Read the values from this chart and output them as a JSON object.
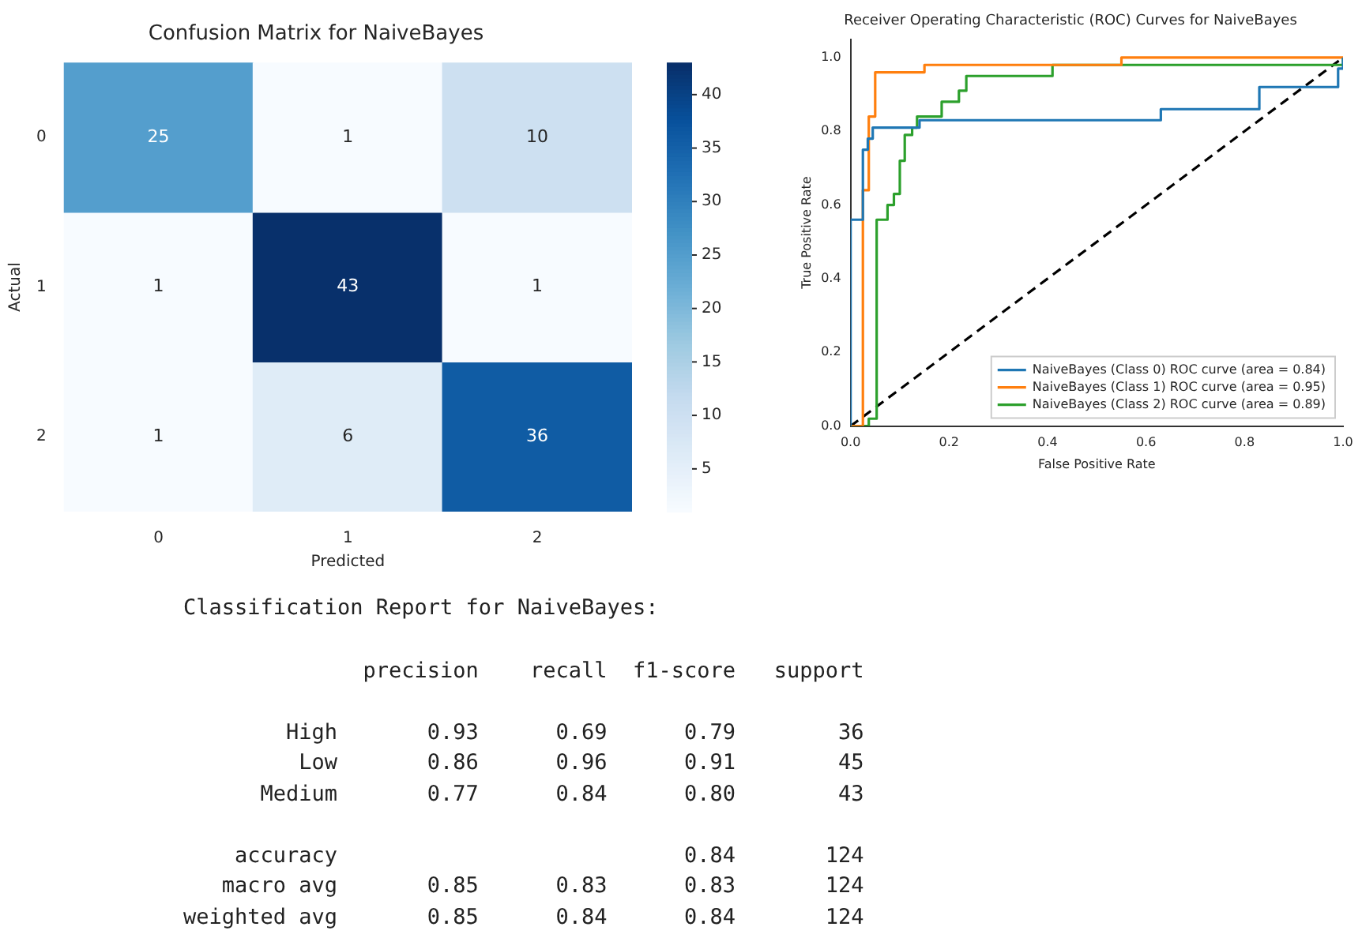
{
  "chart_data": [
    {
      "type": "heatmap",
      "title": "Confusion Matrix for NaiveBayes",
      "xlabel": "Predicted",
      "ylabel": "Actual",
      "categories": [
        "0",
        "1",
        "2"
      ],
      "y_categories": [
        "0",
        "1",
        "2"
      ],
      "cells": [
        [
          25,
          1,
          10
        ],
        [
          1,
          43,
          1
        ],
        [
          1,
          6,
          36
        ]
      ],
      "clim": [
        1,
        43
      ],
      "cticks": [
        5,
        10,
        15,
        20,
        25,
        30,
        35,
        40
      ],
      "data_labels": true
    },
    {
      "type": "line",
      "title": "Receiver Operating Characteristic (ROC) Curves for NaiveBayes",
      "xlabel": "False Positive Rate",
      "ylabel": "True Positive Rate",
      "xlim": [
        0,
        1
      ],
      "ylim": [
        0,
        1.05
      ],
      "xticks": [
        {
          "value": 0,
          "label": "0.0"
        },
        {
          "value": 0.2,
          "label": "0.2"
        },
        {
          "value": 0.4,
          "label": "0.4"
        },
        {
          "value": 0.6,
          "label": "0.6"
        },
        {
          "value": 0.8,
          "label": "0.8"
        },
        {
          "value": 1,
          "label": "1.0"
        }
      ],
      "yticks": [
        {
          "value": 0,
          "label": "0.0"
        },
        {
          "value": 0.2,
          "label": "0.2"
        },
        {
          "value": 0.4,
          "label": "0.4"
        },
        {
          "value": 0.6,
          "label": "0.6"
        },
        {
          "value": 0.8,
          "label": "0.8"
        },
        {
          "value": 1,
          "label": "1.0"
        }
      ],
      "grid": false,
      "legend": "bottom right",
      "marker": "none",
      "series": [
        {
          "name": "NaiveBayes (Class 0) ROC curve (area = 0.84)",
          "color": "#1f77b4",
          "x": [
            0,
            0,
            0.025,
            0.025,
            0.035,
            0.035,
            0.045,
            0.045,
            0.12,
            0.12,
            0.14,
            0.14,
            0.63,
            0.63,
            0.83,
            0.83,
            0.99,
            0.99,
            1,
            1
          ],
          "values": [
            0,
            0.56,
            0.56,
            0.75,
            0.75,
            0.78,
            0.78,
            0.81,
            0.81,
            0.81,
            0.81,
            0.83,
            0.83,
            0.86,
            0.86,
            0.92,
            0.92,
            0.97,
            0.97,
            1
          ]
        },
        {
          "name": "NaiveBayes (Class 1) ROC curve (area = 0.95)",
          "color": "#ff7f0e",
          "x": [
            0,
            0.025,
            0.025,
            0.037,
            0.037,
            0.05,
            0.05,
            0.15,
            0.15,
            0.55,
            0.55,
            1
          ],
          "values": [
            0,
            0,
            0.64,
            0.64,
            0.84,
            0.84,
            0.96,
            0.96,
            0.98,
            0.98,
            1,
            1
          ]
        },
        {
          "name": "NaiveBayes (Class 2) ROC curve (area = 0.89)",
          "color": "#2ca02c",
          "x": [
            0,
            0.037,
            0.037,
            0.053,
            0.053,
            0.075,
            0.075,
            0.088,
            0.088,
            0.1,
            0.1,
            0.11,
            0.11,
            0.125,
            0.125,
            0.135,
            0.135,
            0.185,
            0.185,
            0.22,
            0.22,
            0.235,
            0.235,
            0.41,
            0.41,
            1,
            1
          ],
          "values": [
            0,
            0,
            0.02,
            0.02,
            0.56,
            0.56,
            0.6,
            0.6,
            0.63,
            0.63,
            0.72,
            0.72,
            0.79,
            0.79,
            0.81,
            0.81,
            0.84,
            0.84,
            0.88,
            0.88,
            0.91,
            0.91,
            0.95,
            0.95,
            0.98,
            0.98,
            1
          ]
        },
        {
          "color": "#000000",
          "line_style": "dashed",
          "x": [
            0,
            1
          ],
          "values": [
            0,
            1
          ]
        }
      ]
    },
    {
      "type": "other",
      "title": "Classification Report for NaiveBayes:",
      "annotations": [
        "              precision    recall  f1-score   support",
        "        High       0.93      0.69      0.79        36",
        "         Low       0.86      0.96      0.91        45",
        "      Medium       0.77      0.84      0.80        43",
        "    accuracy                           0.84       124",
        "   macro avg       0.85      0.83      0.83       124",
        "weighted avg       0.85      0.84      0.84       124"
      ]
    }
  ]
}
